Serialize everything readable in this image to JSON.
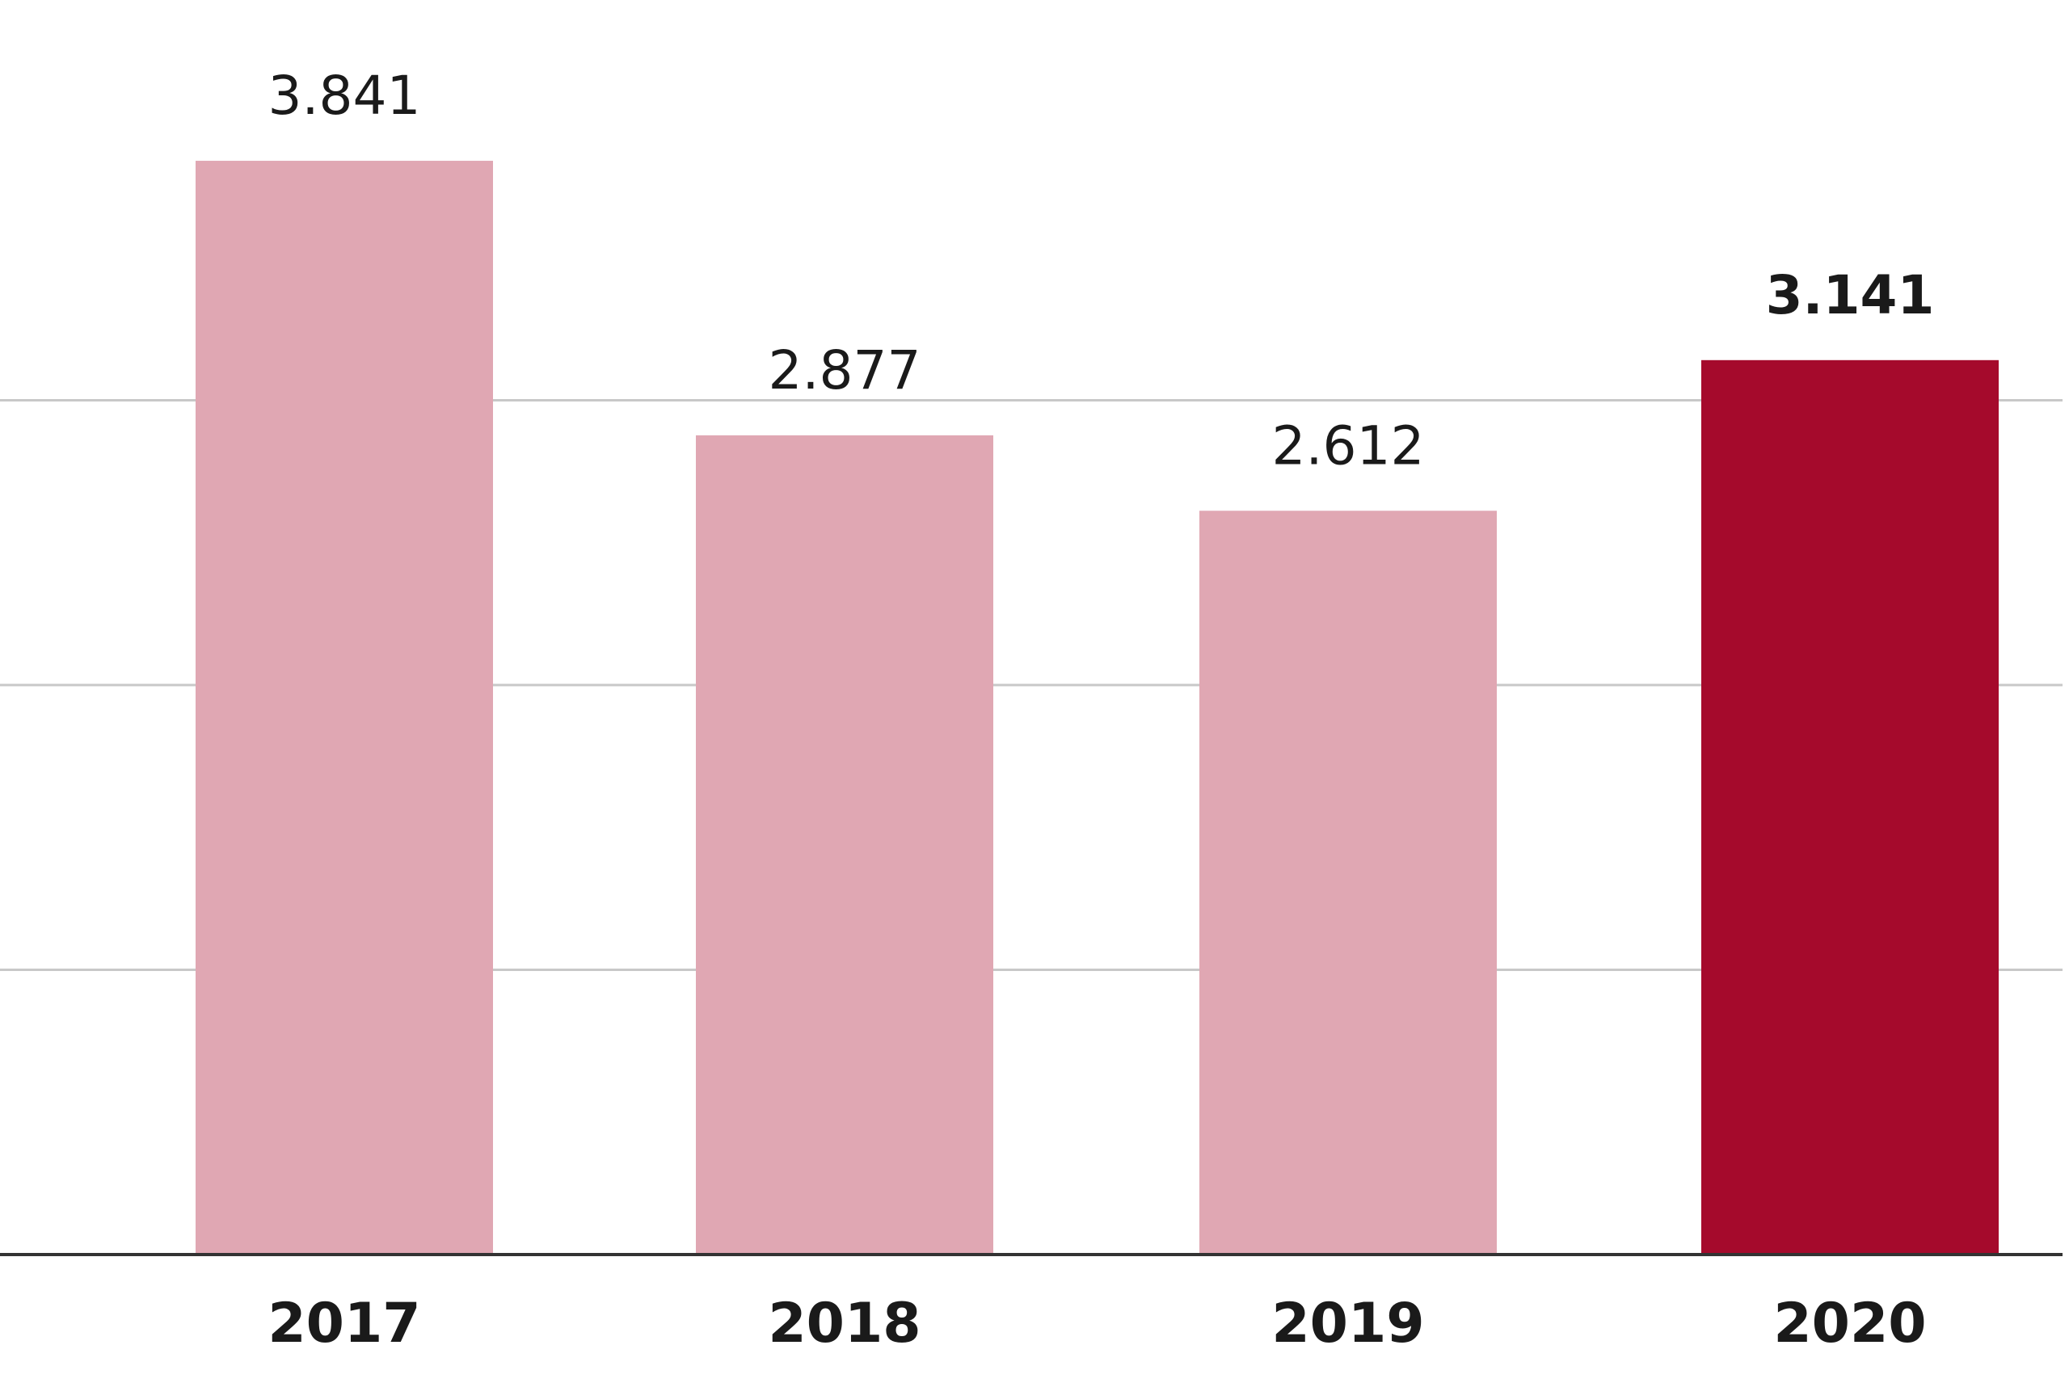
{
  "chart_data": {
    "type": "bar",
    "title": "",
    "xlabel": "",
    "ylabel": "",
    "categories": [
      "2017",
      "2018",
      "2019",
      "2020"
    ],
    "values": [
      3841,
      2877,
      2612,
      3141
    ],
    "value_labels": [
      "3.841",
      "2.877",
      "2.612",
      "3.141"
    ],
    "highlight_index": 3,
    "ylim": [
      0,
      4000
    ],
    "gridlines": [
      1000,
      2000,
      3000
    ],
    "grid": true,
    "legend": "none",
    "colors": {
      "bar": "#E0A7B3",
      "highlight": "#A50A2C",
      "grid": "#C8C8C8",
      "axis": "#333333",
      "text": "#1a1a1a"
    }
  }
}
